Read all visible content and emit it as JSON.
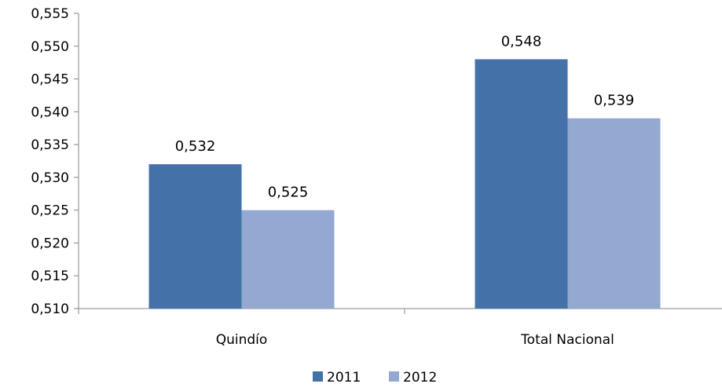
{
  "chart_data": {
    "type": "bar",
    "categories": [
      "Quindío",
      "Total Nacional"
    ],
    "series": [
      {
        "name": "2011",
        "values": [
          0.532,
          0.548
        ],
        "labels": [
          "0,532",
          "0,548"
        ],
        "color": "#4472a8"
      },
      {
        "name": "2012",
        "values": [
          0.525,
          0.539
        ],
        "labels": [
          "0,525",
          "0,539"
        ],
        "color": "#93a9d1"
      }
    ],
    "ylim": [
      0.51,
      0.555
    ],
    "yticks": [
      0.51,
      0.515,
      0.52,
      0.525,
      0.53,
      0.535,
      0.54,
      0.545,
      0.55,
      0.555
    ],
    "ytick_labels": [
      "0,510",
      "0,515",
      "0,520",
      "0,525",
      "0,530",
      "0,535",
      "0,540",
      "0,545",
      "0,550",
      "0,555"
    ],
    "title": "",
    "xlabel": "",
    "ylabel": "",
    "grid": false,
    "legend_position": "bottom"
  }
}
